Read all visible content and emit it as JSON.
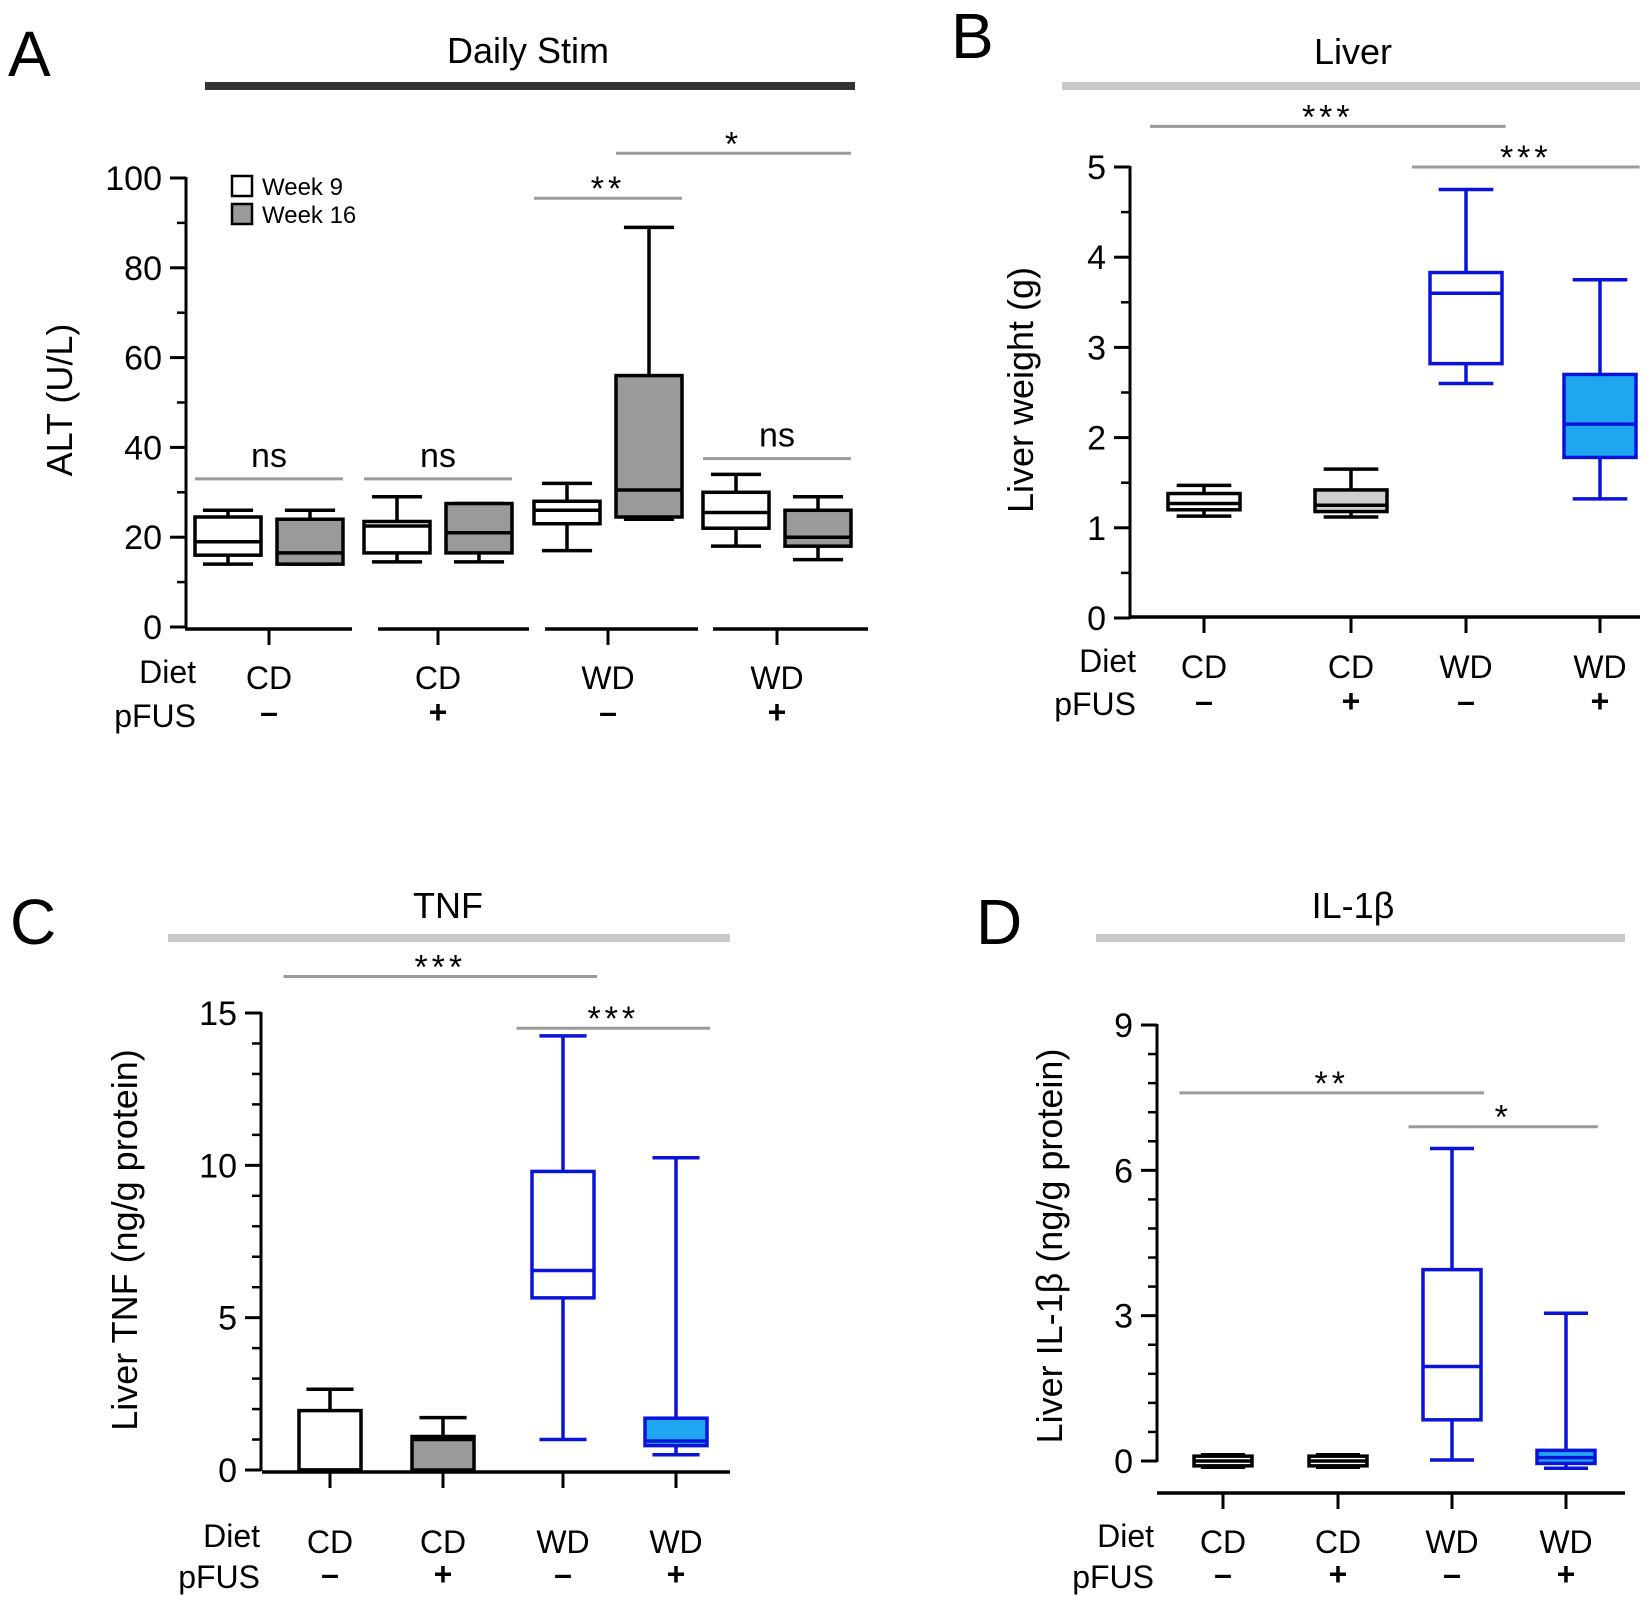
{
  "colors": {
    "black": "#000000",
    "blue": "#0a14d8",
    "gray_fill": "#9a9a9a",
    "light_gray_fill": "#cfcfcf",
    "blue_fill": "#1ea6f0",
    "title_bar_dark": "#333333",
    "title_bar_light": "#c8c8c8",
    "sig_line": "#9a9a9a"
  },
  "row_labels": {
    "diet": "Diet",
    "pfus": "pFUS"
  },
  "chart_data": [
    {
      "panel": "A",
      "type": "box",
      "title": "Daily Stim",
      "title_bar": "dark",
      "ylabel": "ALT (U/L)",
      "ylim": [
        0,
        100
      ],
      "yticks": [
        0,
        20,
        40,
        60,
        80,
        100
      ],
      "yticks_text": [
        "0",
        "20",
        "40",
        "60",
        "80",
        "100"
      ],
      "groups": [
        {
          "diet": "CD",
          "pfus": "–"
        },
        {
          "diet": "CD",
          "pfus": "+"
        },
        {
          "diet": "WD",
          "pfus": "–"
        },
        {
          "diet": "WD",
          "pfus": "+"
        }
      ],
      "legend": [
        {
          "label": "Week 9",
          "fill": "white"
        },
        {
          "label": "Week 16",
          "fill": "gray"
        }
      ],
      "boxes": [
        {
          "group": 0,
          "series": "Week 9",
          "min": 14,
          "q1": 16,
          "median": 19,
          "q3": 24.5,
          "max": 26,
          "stroke": "black",
          "fill": "white"
        },
        {
          "group": 0,
          "series": "Week 16",
          "min": 14,
          "q1": 14,
          "median": 16.5,
          "q3": 24,
          "max": 26,
          "stroke": "black",
          "fill": "gray"
        },
        {
          "group": 1,
          "series": "Week 9",
          "min": 14.5,
          "q1": 16.5,
          "median": 22.5,
          "q3": 23.5,
          "max": 29,
          "stroke": "black",
          "fill": "white"
        },
        {
          "group": 1,
          "series": "Week 16",
          "min": 14.5,
          "q1": 16.5,
          "median": 21,
          "q3": 27.5,
          "max": 27.5,
          "stroke": "black",
          "fill": "gray"
        },
        {
          "group": 2,
          "series": "Week 9",
          "min": 17,
          "q1": 23,
          "median": 26,
          "q3": 28,
          "max": 32,
          "stroke": "black",
          "fill": "white"
        },
        {
          "group": 2,
          "series": "Week 16",
          "min": 24,
          "q1": 24.5,
          "median": 30.5,
          "q3": 56,
          "max": 89,
          "stroke": "black",
          "fill": "gray"
        },
        {
          "group": 3,
          "series": "Week 9",
          "min": 18,
          "q1": 22,
          "median": 25.5,
          "q3": 30,
          "max": 34,
          "stroke": "black",
          "fill": "white"
        },
        {
          "group": 3,
          "series": "Week 16",
          "min": 15,
          "q1": 18,
          "median": 20,
          "q3": 26,
          "max": 29,
          "stroke": "black",
          "fill": "gray"
        }
      ],
      "annotations": [
        {
          "text": "ns",
          "from": [
            0,
            0
          ],
          "to": [
            0,
            1
          ],
          "y": 33
        },
        {
          "text": "ns",
          "from": [
            1,
            0
          ],
          "to": [
            1,
            1
          ],
          "y": 33
        },
        {
          "text": "ns",
          "from": [
            3,
            0
          ],
          "to": [
            3,
            1
          ],
          "y": 37.5
        },
        {
          "text": "**",
          "from": [
            2,
            0
          ],
          "to": [
            2,
            1
          ],
          "y": 95.5
        },
        {
          "text": "*",
          "from": [
            2,
            1
          ],
          "to": [
            3,
            1
          ],
          "y": 105.5
        }
      ]
    },
    {
      "panel": "B",
      "type": "box",
      "title": "Liver",
      "title_bar": "light",
      "ylabel": "Liver weight (g)",
      "ylim": [
        0,
        5
      ],
      "yticks": [
        0,
        1,
        2,
        3,
        4,
        5
      ],
      "yticks_text": [
        "0",
        "1",
        "2",
        "3",
        "4",
        "5"
      ],
      "groups": [
        {
          "diet": "CD",
          "pfus": "–"
        },
        {
          "diet": "CD",
          "pfus": "+"
        },
        {
          "diet": "WD",
          "pfus": "–"
        },
        {
          "diet": "WD",
          "pfus": "+"
        }
      ],
      "boxes": [
        {
          "group": 0,
          "min": 1.13,
          "q1": 1.2,
          "median": 1.27,
          "q3": 1.38,
          "max": 1.47,
          "stroke": "black",
          "fill": "white"
        },
        {
          "group": 1,
          "min": 1.12,
          "q1": 1.18,
          "median": 1.25,
          "q3": 1.42,
          "max": 1.65,
          "stroke": "black",
          "fill": "lightgray"
        },
        {
          "group": 2,
          "min": 2.6,
          "q1": 2.82,
          "median": 3.6,
          "q3": 3.83,
          "max": 4.75,
          "stroke": "blue",
          "fill": "white"
        },
        {
          "group": 3,
          "min": 1.32,
          "q1": 1.78,
          "median": 2.15,
          "q3": 2.7,
          "max": 3.75,
          "stroke": "blue",
          "fill": "blue"
        }
      ],
      "annotations": [
        {
          "text": "***",
          "from": 0,
          "to": 2,
          "y": 5.45
        },
        {
          "text": "***",
          "from": 2,
          "to": 3,
          "y": 5.0
        }
      ]
    },
    {
      "panel": "C",
      "type": "box",
      "title": "TNF",
      "title_bar": "light",
      "ylabel": "Liver TNF (ng/g protein)",
      "ylim": [
        0,
        15
      ],
      "yticks": [
        0,
        5,
        10,
        15
      ],
      "yticks_text": [
        "0",
        "5",
        "10",
        "15"
      ],
      "groups": [
        {
          "diet": "CD",
          "pfus": "–"
        },
        {
          "diet": "CD",
          "pfus": "+"
        },
        {
          "diet": "WD",
          "pfus": "–"
        },
        {
          "diet": "WD",
          "pfus": "+"
        }
      ],
      "boxes": [
        {
          "group": 0,
          "min": 0,
          "q1": 0,
          "median": 0,
          "q3": 1.95,
          "max": 2.65,
          "stroke": "black",
          "fill": "white"
        },
        {
          "group": 1,
          "min": 0,
          "q1": 0,
          "median": 1.0,
          "q3": 1.1,
          "max": 1.72,
          "stroke": "black",
          "fill": "gray"
        },
        {
          "group": 2,
          "min": 1.0,
          "q1": 5.65,
          "median": 6.55,
          "q3": 9.8,
          "max": 14.25,
          "stroke": "blue",
          "fill": "white"
        },
        {
          "group": 3,
          "min": 0.5,
          "q1": 0.8,
          "median": 0.95,
          "q3": 1.7,
          "max": 10.25,
          "stroke": "blue",
          "fill": "blue"
        }
      ],
      "annotations": [
        {
          "text": "***",
          "from": 0,
          "to": 2,
          "y": 16.2
        },
        {
          "text": "***",
          "from": 2,
          "to": 3,
          "y": 14.5
        }
      ]
    },
    {
      "panel": "D",
      "type": "box",
      "title": "IL-1β",
      "title_bar": "light",
      "ylabel": "Liver IL-1β (ng/g protein)",
      "ylim": [
        0,
        9
      ],
      "yticks": [
        0,
        3,
        6,
        9
      ],
      "yticks_text": [
        "0",
        "3",
        "6",
        "9"
      ],
      "groups": [
        {
          "diet": "CD",
          "pfus": "–"
        },
        {
          "diet": "CD",
          "pfus": "+"
        },
        {
          "diet": "WD",
          "pfus": "–"
        },
        {
          "diet": "WD",
          "pfus": "+"
        }
      ],
      "boxes": [
        {
          "group": 0,
          "min": -0.13,
          "q1": -0.1,
          "median": 0,
          "q3": 0.1,
          "max": 0.13,
          "stroke": "black",
          "fill": "white"
        },
        {
          "group": 1,
          "min": -0.13,
          "q1": -0.1,
          "median": 0,
          "q3": 0.1,
          "max": 0.13,
          "stroke": "black",
          "fill": "white"
        },
        {
          "group": 2,
          "min": 0.02,
          "q1": 0.85,
          "median": 1.95,
          "q3": 3.95,
          "max": 6.45,
          "stroke": "blue",
          "fill": "white"
        },
        {
          "group": 3,
          "min": -0.15,
          "q1": -0.05,
          "median": 0.07,
          "q3": 0.22,
          "max": 3.05,
          "stroke": "blue",
          "fill": "blue"
        }
      ],
      "annotations": [
        {
          "text": "**",
          "from": 0,
          "to": 2,
          "y": 7.6
        },
        {
          "text": "*",
          "from": 2,
          "to": 3,
          "y": 6.9
        }
      ]
    }
  ]
}
